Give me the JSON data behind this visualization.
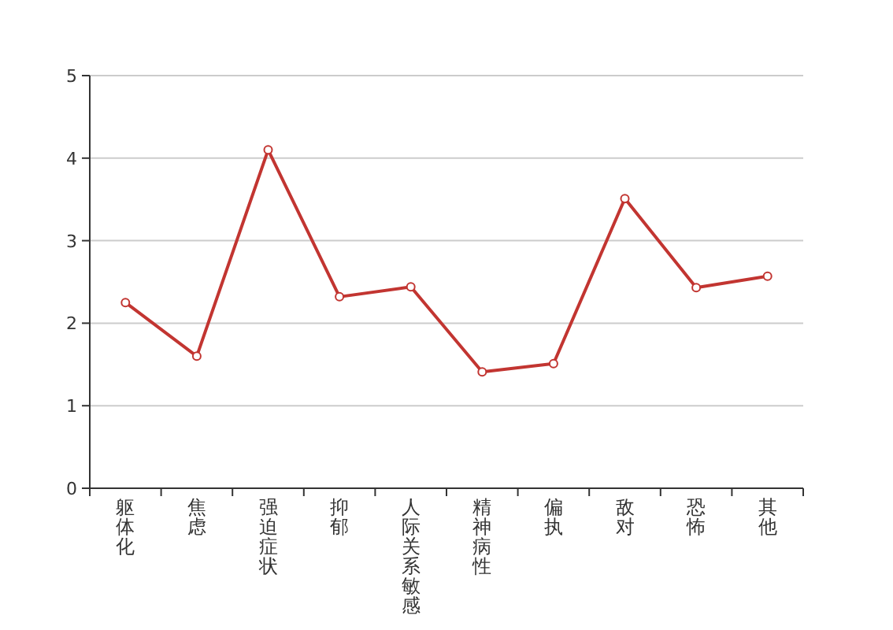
{
  "chart_data": {
    "type": "line",
    "categories": [
      "躯体化",
      "焦虑",
      "强迫症状",
      "抑郁",
      "人际关系敏感",
      "精神病性",
      "偏执",
      "敌对",
      "恐怖",
      "其他"
    ],
    "series": [
      {
        "color": "#c23531",
        "values": [
          2.25,
          1.6,
          4.1,
          2.32,
          2.44,
          1.41,
          1.51,
          3.51,
          2.43,
          2.57
        ]
      }
    ],
    "ylim": [
      0,
      5
    ],
    "yticks": [
      0,
      1,
      2,
      3,
      4,
      5
    ],
    "grid": "y",
    "marker": "circle",
    "line_style": "solid"
  }
}
